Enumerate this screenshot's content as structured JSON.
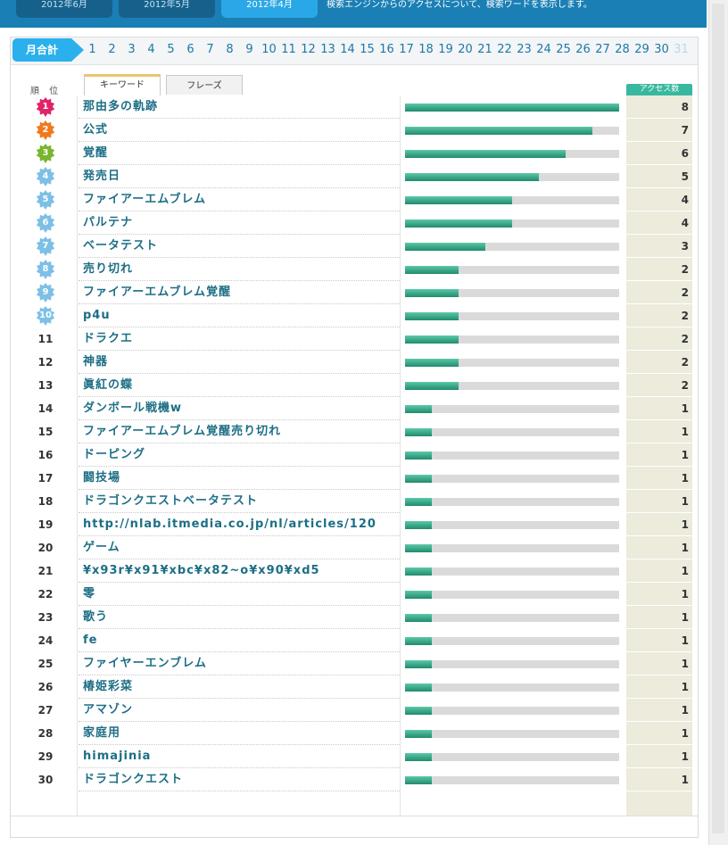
{
  "top_tabs": [
    "2012年6月",
    "2012年5月",
    "2012年4月"
  ],
  "top_description": "検索エンジンからのアクセスについて、検索ワードを表示します。",
  "day_nav": {
    "month_total_label": "月合計",
    "days": [
      "1",
      "2",
      "3",
      "4",
      "5",
      "6",
      "7",
      "8",
      "9",
      "10",
      "11",
      "12",
      "13",
      "14",
      "15",
      "16",
      "17",
      "18",
      "19",
      "20",
      "21",
      "22",
      "23",
      "24",
      "25",
      "26",
      "27",
      "28",
      "29",
      "30",
      "31"
    ],
    "disabled_day": "31"
  },
  "headers": {
    "rank": "順 位",
    "tab_keyword": "キーワード",
    "tab_phrase": "フレーズ",
    "access": "アクセス数"
  },
  "colors": {
    "bar_fill": "#2b9a7a",
    "access_bg": "#ecebdc",
    "keyword_text": "#1d6e85",
    "topbar": "#1a7fb4"
  },
  "max_count": 8,
  "rows": [
    {
      "rank": "1",
      "keyword": "那由多の軌跡",
      "count": "8",
      "badge": "#e0246a"
    },
    {
      "rank": "2",
      "keyword": "公式",
      "count": "7",
      "badge": "#ef7a1e"
    },
    {
      "rank": "3",
      "keyword": "覚醒",
      "count": "6",
      "badge": "#7ab52d"
    },
    {
      "rank": "4",
      "keyword": "発売日",
      "count": "5",
      "badge": "#7cc0e6"
    },
    {
      "rank": "5",
      "keyword": "ファイアーエムブレム",
      "count": "4",
      "badge": "#7cc0e6"
    },
    {
      "rank": "6",
      "keyword": "パルテナ",
      "count": "4",
      "badge": "#7cc0e6"
    },
    {
      "rank": "7",
      "keyword": "ベータテスト",
      "count": "3",
      "badge": "#7cc0e6"
    },
    {
      "rank": "8",
      "keyword": "売り切れ",
      "count": "2",
      "badge": "#7cc0e6"
    },
    {
      "rank": "9",
      "keyword": "ファイアーエムブレム覚醒",
      "count": "2",
      "badge": "#7cc0e6"
    },
    {
      "rank": "10",
      "keyword": "p4u",
      "count": "2",
      "badge": "#7cc0e6"
    },
    {
      "rank": "11",
      "keyword": "ドラクエ",
      "count": "2"
    },
    {
      "rank": "12",
      "keyword": "神器",
      "count": "2"
    },
    {
      "rank": "13",
      "keyword": "眞紅の蝶",
      "count": "2"
    },
    {
      "rank": "14",
      "keyword": "ダンボール戦機w",
      "count": "1"
    },
    {
      "rank": "15",
      "keyword": "ファイアーエムブレム覚醒売り切れ",
      "count": "1"
    },
    {
      "rank": "16",
      "keyword": "ドーピング",
      "count": "1"
    },
    {
      "rank": "17",
      "keyword": "闘技場",
      "count": "1"
    },
    {
      "rank": "18",
      "keyword": "ドラゴンクエストベータテスト",
      "count": "1"
    },
    {
      "rank": "19",
      "keyword": "http://nlab.itmedia.co.jp/nl/articles/120",
      "count": "1"
    },
    {
      "rank": "20",
      "keyword": "ゲーム",
      "count": "1"
    },
    {
      "rank": "21",
      "keyword": "¥x93r¥x91¥xbc¥x82~o¥x90¥xd5",
      "count": "1"
    },
    {
      "rank": "22",
      "keyword": "零",
      "count": "1"
    },
    {
      "rank": "23",
      "keyword": "歌う",
      "count": "1"
    },
    {
      "rank": "24",
      "keyword": "fe",
      "count": "1"
    },
    {
      "rank": "25",
      "keyword": "ファイヤーエンブレム",
      "count": "1"
    },
    {
      "rank": "26",
      "keyword": "椿姫彩菜",
      "count": "1"
    },
    {
      "rank": "27",
      "keyword": "アマゾン",
      "count": "1"
    },
    {
      "rank": "28",
      "keyword": "家庭用",
      "count": "1"
    },
    {
      "rank": "29",
      "keyword": "himajinia",
      "count": "1"
    },
    {
      "rank": "30",
      "keyword": "ドラゴンクエスト",
      "count": "1"
    }
  ]
}
